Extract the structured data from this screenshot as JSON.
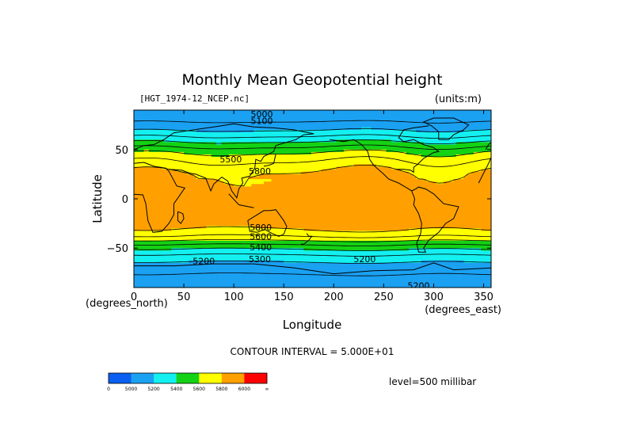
{
  "chart_data": {
    "type": "heatmap",
    "title": "Monthly Mean Geopotential height",
    "file_label": "[HGT_1974-12_NCEP.nc]",
    "units_label": "(units:m)",
    "xlabel": "Longitude",
    "ylabel": "Latitude",
    "x_units": "(degrees_east)",
    "y_units": "(degrees_north)",
    "xlim": [
      0,
      357.5
    ],
    "ylim": [
      -90,
      90
    ],
    "x_ticks": [
      0,
      50,
      100,
      150,
      200,
      250,
      300,
      350
    ],
    "y_ticks": [
      50,
      0,
      -50
    ],
    "y_tick_labels": [
      "50",
      "0",
      "−50"
    ],
    "contour_interval": "CONTOUR INTERVAL = 5.000E+01",
    "level": "level=500 millibar",
    "colorbar": {
      "bins": [
        {
          "lo": 0,
          "hi": 5000,
          "color": "#0a5ff0"
        },
        {
          "lo": 5000,
          "hi": 5200,
          "color": "#1ba1f2"
        },
        {
          "lo": 5200,
          "hi": 5400,
          "color": "#14f0f0"
        },
        {
          "lo": 5400,
          "hi": 5600,
          "color": "#14d214"
        },
        {
          "lo": 5600,
          "hi": 5800,
          "color": "#ffff00"
        },
        {
          "lo": 5800,
          "hi": 6000,
          "color": "#ffa000"
        },
        {
          "lo": 6000,
          "hi": 99999,
          "color": "#ff0000"
        }
      ],
      "tick_labels": [
        "0",
        "5000",
        "5200",
        "5400",
        "5600",
        "5800",
        "6000",
        "∞"
      ]
    },
    "zonal_profile": [
      {
        "lat": 90,
        "value": 5020
      },
      {
        "lat": 80,
        "value": 5080
      },
      {
        "lat": 70,
        "value": 5190
      },
      {
        "lat": 62,
        "value": 5320
      },
      {
        "lat": 55,
        "value": 5450
      },
      {
        "lat": 48,
        "value": 5580
      },
      {
        "lat": 40,
        "value": 5680
      },
      {
        "lat": 32,
        "value": 5760
      },
      {
        "lat": 25,
        "value": 5820
      },
      {
        "lat": 0,
        "value": 5880
      },
      {
        "lat": -25,
        "value": 5860
      },
      {
        "lat": -32,
        "value": 5790
      },
      {
        "lat": -38,
        "value": 5700
      },
      {
        "lat": -44,
        "value": 5560
      },
      {
        "lat": -50,
        "value": 5420
      },
      {
        "lat": -58,
        "value": 5280
      },
      {
        "lat": -68,
        "value": 5150
      },
      {
        "lat": -80,
        "value": 5080
      },
      {
        "lat": -90,
        "value": 5060
      }
    ],
    "contour_labels": [
      {
        "text": "5000",
        "lon": 128,
        "lat": 86
      },
      {
        "text": "5100",
        "lon": 128,
        "lat": 79
      },
      {
        "text": "5500",
        "lon": 97,
        "lat": 40
      },
      {
        "text": "5800",
        "lon": 126,
        "lat": 28
      },
      {
        "text": "5800",
        "lon": 127,
        "lat": -29
      },
      {
        "text": "5600",
        "lon": 127,
        "lat": -38
      },
      {
        "text": "5400",
        "lon": 127,
        "lat": -49
      },
      {
        "text": "5200",
        "lon": 70,
        "lat": -63
      },
      {
        "text": "5300",
        "lon": 126,
        "lat": -61
      },
      {
        "text": "5200",
        "lon": 231,
        "lat": -61
      },
      {
        "text": "5200",
        "lon": 285,
        "lat": -88
      }
    ]
  }
}
